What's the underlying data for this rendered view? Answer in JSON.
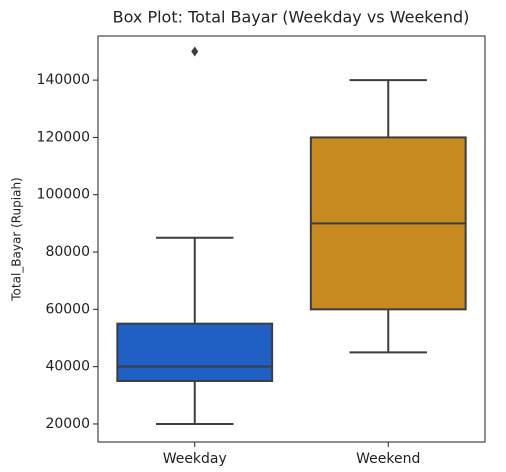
{
  "chart_data": {
    "type": "box",
    "title": "Box Plot: Total Bayar (Weekday vs Weekend)",
    "y_label": "Total_Bayar (Rupiah)",
    "categories": [
      "Weekday",
      "Weekend"
    ],
    "boxes": [
      {
        "whisker_low": 20000,
        "q1": 35000,
        "median": 40000,
        "q3": 55000,
        "whisker_high": 85000,
        "outliers": [
          150000
        ],
        "color": "#2060c4"
      },
      {
        "whisker_low": 45000,
        "q1": 60000,
        "median": 90000,
        "q3": 120000,
        "whisker_high": 140000,
        "outliers": [],
        "color": "#c68a20"
      }
    ],
    "ylim": [
      13700,
      155400
    ],
    "yticks": [
      20000,
      40000,
      60000,
      80000,
      100000,
      120000,
      140000
    ]
  }
}
